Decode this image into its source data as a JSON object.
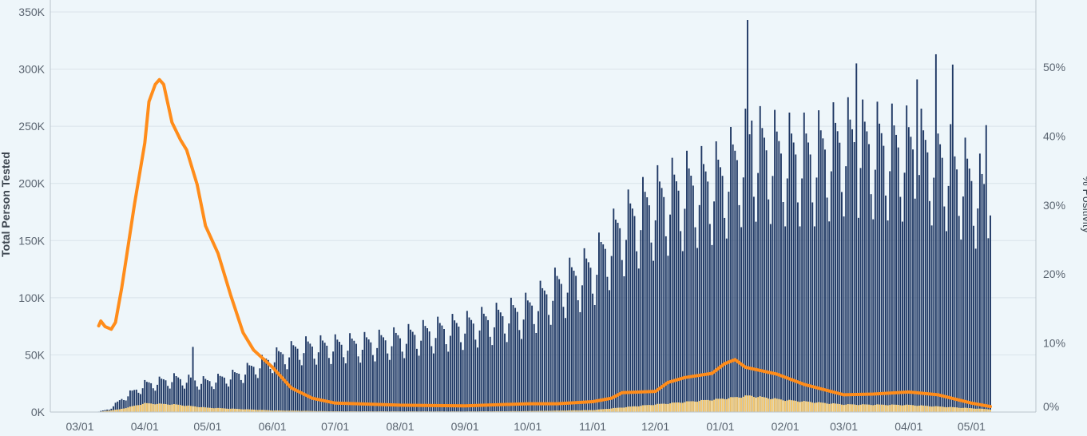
{
  "chart_data": {
    "type": "bar+line",
    "ylabel_left": "Total Person Tested",
    "ylabel_right": "% Positivity",
    "ylim_left": [
      0,
      350000
    ],
    "ylim_right": [
      0,
      58
    ],
    "yticks_left": [
      "0K",
      "50K",
      "100K",
      "150K",
      "200K",
      "250K",
      "300K",
      "350K"
    ],
    "yticks_right": [
      "0%",
      "10%",
      "20%",
      "30%",
      "40%",
      "50%"
    ],
    "x_tick_labels": [
      "03/01",
      "04/01",
      "05/01",
      "06/01",
      "07/01",
      "08/01",
      "09/01",
      "10/01",
      "11/01",
      "12/01",
      "01/01",
      "02/01",
      "03/01",
      "04/01",
      "05/01"
    ],
    "x_start": "2020-03-09",
    "x_end": "2021-05-10",
    "bar_series_name": "Total Person Tested",
    "bar_anchors": [
      [
        "2020-03-09",
        0
      ],
      [
        "2020-03-15",
        3000
      ],
      [
        "2020-03-22",
        15000
      ],
      [
        "2020-04-01",
        28000
      ],
      [
        "2020-04-15",
        34000
      ],
      [
        "2020-05-01",
        31000
      ],
      [
        "2020-05-15",
        38000
      ],
      [
        "2020-06-01",
        55000
      ],
      [
        "2020-06-15",
        66000
      ],
      [
        "2020-07-01",
        68000
      ],
      [
        "2020-07-15",
        70000
      ],
      [
        "2020-08-01",
        75000
      ],
      [
        "2020-08-15",
        82000
      ],
      [
        "2020-09-01",
        88000
      ],
      [
        "2020-09-15",
        95000
      ],
      [
        "2020-10-01",
        105000
      ],
      [
        "2020-10-15",
        128000
      ],
      [
        "2020-11-01",
        148000
      ],
      [
        "2020-11-15",
        190000
      ],
      [
        "2020-12-01",
        215000
      ],
      [
        "2020-12-15",
        228000
      ],
      [
        "2021-01-01",
        238000
      ],
      [
        "2021-01-15",
        270000
      ],
      [
        "2021-02-01",
        262000
      ],
      [
        "2021-02-15",
        262000
      ],
      [
        "2021-03-01",
        276000
      ],
      [
        "2021-03-15",
        272000
      ],
      [
        "2021-04-01",
        268000
      ],
      [
        "2021-04-15",
        262000
      ],
      [
        "2021-05-01",
        235000
      ],
      [
        "2021-05-10",
        215000
      ]
    ],
    "bar_spikes": [
      [
        "2020-04-24",
        57000
      ],
      [
        "2021-01-14",
        343000
      ],
      [
        "2021-01-16",
        255000
      ],
      [
        "2021-03-07",
        305000
      ],
      [
        "2021-04-05",
        291000
      ],
      [
        "2021-04-14",
        313000
      ],
      [
        "2021-04-22",
        304000
      ],
      [
        "2021-05-08",
        251000
      ],
      [
        "2021-05-10",
        172000
      ]
    ],
    "positive_series_name": "Positive",
    "positive_anchors": [
      [
        "2020-03-09",
        0
      ],
      [
        "2020-03-20",
        2500
      ],
      [
        "2020-04-01",
        8000
      ],
      [
        "2020-04-15",
        7000
      ],
      [
        "2020-05-01",
        4000
      ],
      [
        "2020-06-01",
        1500
      ],
      [
        "2020-07-01",
        700
      ],
      [
        "2020-09-01",
        600
      ],
      [
        "2020-10-01",
        900
      ],
      [
        "2020-11-01",
        1800
      ],
      [
        "2020-12-01",
        7000
      ],
      [
        "2021-01-01",
        12000
      ],
      [
        "2021-01-15",
        15000
      ],
      [
        "2021-02-01",
        11000
      ],
      [
        "2021-03-01",
        7000
      ],
      [
        "2021-04-01",
        6500
      ],
      [
        "2021-05-01",
        3500
      ],
      [
        "2021-05-10",
        2500
      ]
    ],
    "line_series_name": "% Positivity",
    "line_points": [
      [
        "2020-03-10",
        12.5
      ],
      [
        "2020-03-11",
        13.2
      ],
      [
        "2020-03-13",
        12.4
      ],
      [
        "2020-03-16",
        12.0
      ],
      [
        "2020-03-18",
        13.0
      ],
      [
        "2020-03-21",
        18.0
      ],
      [
        "2020-03-23",
        22.0
      ],
      [
        "2020-03-27",
        30.0
      ],
      [
        "2020-04-01",
        39.0
      ],
      [
        "2020-04-03",
        45.0
      ],
      [
        "2020-04-06",
        47.5
      ],
      [
        "2020-04-08",
        48.2
      ],
      [
        "2020-04-10",
        47.5
      ],
      [
        "2020-04-14",
        42.0
      ],
      [
        "2020-04-18",
        39.5
      ],
      [
        "2020-04-21",
        38.0
      ],
      [
        "2020-04-26",
        33.0
      ],
      [
        "2020-04-30",
        27.0
      ],
      [
        "2020-05-06",
        23.0
      ],
      [
        "2020-05-12",
        17.0
      ],
      [
        "2020-05-18",
        11.5
      ],
      [
        "2020-05-23",
        9.0
      ],
      [
        "2020-06-01",
        6.5
      ],
      [
        "2020-06-10",
        3.5
      ],
      [
        "2020-06-20",
        2.0
      ],
      [
        "2020-07-01",
        1.3
      ],
      [
        "2020-08-01",
        1.0
      ],
      [
        "2020-09-01",
        0.9
      ],
      [
        "2020-10-01",
        1.2
      ],
      [
        "2020-10-15",
        1.2
      ],
      [
        "2020-11-01",
        1.5
      ],
      [
        "2020-11-10",
        2.0
      ],
      [
        "2020-11-15",
        2.8
      ],
      [
        "2020-12-01",
        3.0
      ],
      [
        "2020-12-07",
        4.3
      ],
      [
        "2020-12-15",
        5.0
      ],
      [
        "2020-12-28",
        5.6
      ],
      [
        "2021-01-03",
        7.0
      ],
      [
        "2021-01-08",
        7.6
      ],
      [
        "2021-01-13",
        6.5
      ],
      [
        "2021-01-28",
        5.5
      ],
      [
        "2021-02-10",
        4.0
      ],
      [
        "2021-03-01",
        2.5
      ],
      [
        "2021-03-15",
        2.6
      ],
      [
        "2021-04-01",
        2.9
      ],
      [
        "2021-04-15",
        2.5
      ],
      [
        "2021-05-01",
        1.3
      ],
      [
        "2021-05-10",
        0.8
      ]
    ],
    "grid": true,
    "legend": "none"
  },
  "colors": {
    "background": "#eef6fa",
    "bar_fill": "#1f3864",
    "positive_fill": "#f7c96d",
    "line": "#ff8c1a",
    "grid": "#d9e3ea",
    "axis_line": "#b9c4cc",
    "tick_text": "#5a6470"
  }
}
